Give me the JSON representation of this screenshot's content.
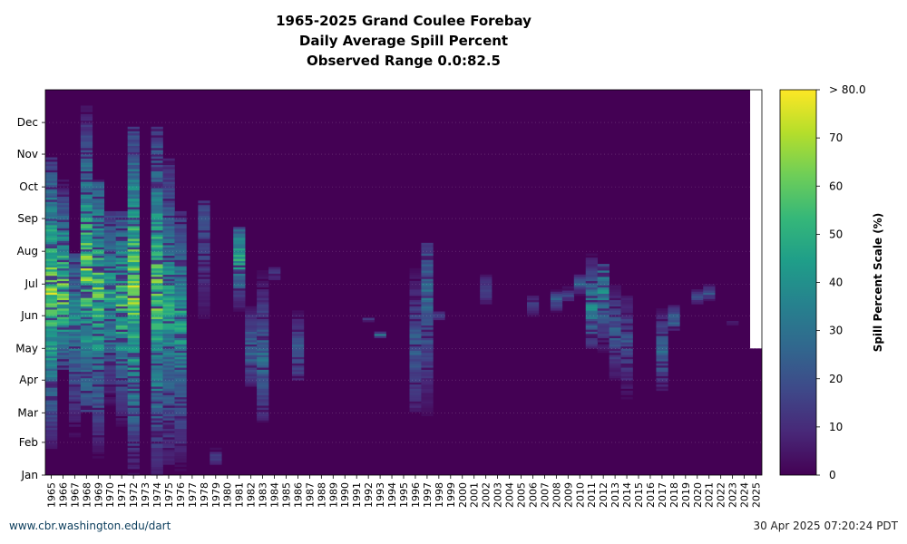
{
  "chart_data": {
    "type": "heatmap",
    "title": "1965-2025 Grand Coulee Forebay",
    "subtitle": "Daily Average Spill Percent",
    "range_note": "Observed Range 0.0:82.5",
    "years": [
      "1965",
      "1966",
      "1967",
      "1968",
      "1969",
      "1970",
      "1971",
      "1972",
      "1973",
      "1974",
      "1975",
      "1976",
      "1977",
      "1978",
      "1979",
      "1980",
      "1981",
      "1982",
      "1983",
      "1984",
      "1985",
      "1986",
      "1987",
      "1988",
      "1989",
      "1990",
      "1991",
      "1992",
      "1993",
      "1994",
      "1995",
      "1996",
      "1997",
      "1998",
      "1999",
      "2000",
      "2001",
      "2002",
      "2003",
      "2004",
      "2005",
      "2006",
      "2007",
      "2008",
      "2009",
      "2010",
      "2011",
      "2012",
      "2013",
      "2014",
      "2015",
      "2016",
      "2017",
      "2018",
      "2019",
      "2020",
      "2021",
      "2022",
      "2023",
      "2024",
      "2025"
    ],
    "months": [
      "Jan",
      "Feb",
      "Mar",
      "Apr",
      "May",
      "Jun",
      "Jul",
      "Aug",
      "Sep",
      "Oct",
      "Nov",
      "Dec"
    ],
    "colorbar": {
      "label": "Spill Percent Scale (%)",
      "ticks": [
        "0",
        "10",
        "20",
        "30",
        "40",
        "50",
        "60",
        "70",
        "> 80.0"
      ],
      "min": 0,
      "max": 80,
      "colormap": [
        "#440154",
        "#482878",
        "#3e4989",
        "#31688e",
        "#26828e",
        "#1f9e89",
        "#35b779",
        "#6ece58",
        "#b5de2b",
        "#fde725"
      ]
    },
    "spill_events": [
      {
        "year": "1965",
        "start": 25,
        "end": 300,
        "peak": 80,
        "center": 175
      },
      {
        "year": "1966",
        "start": 100,
        "end": 280,
        "peak": 80,
        "center": 180
      },
      {
        "year": "1967",
        "start": 0,
        "end": 210,
        "peak": 45,
        "center": 150
      },
      {
        "year": "1968",
        "start": 60,
        "end": 350,
        "peak": 78,
        "center": 190
      },
      {
        "year": "1969",
        "start": 0,
        "end": 280,
        "peak": 70,
        "center": 175
      },
      {
        "year": "1970",
        "start": 60,
        "end": 250,
        "peak": 55,
        "center": 170
      },
      {
        "year": "1971",
        "start": 40,
        "end": 250,
        "peak": 70,
        "center": 165
      },
      {
        "year": "1972",
        "start": 0,
        "end": 330,
        "peak": 80,
        "center": 180
      },
      {
        "year": "1974",
        "start": 0,
        "end": 330,
        "peak": 75,
        "center": 175
      },
      {
        "year": "1975",
        "start": 10,
        "end": 300,
        "peak": 55,
        "center": 160
      },
      {
        "year": "1976",
        "start": 0,
        "end": 250,
        "peak": 55,
        "center": 145
      },
      {
        "year": "1978",
        "start": 100,
        "end": 260,
        "peak": 25,
        "center": 230
      },
      {
        "year": "1979",
        "start": 10,
        "end": 30,
        "peak": 20,
        "center": 15
      },
      {
        "year": "1981",
        "start": 145,
        "end": 235,
        "peak": 60,
        "center": 205
      },
      {
        "year": "1982",
        "start": 80,
        "end": 160,
        "peak": 35,
        "center": 120
      },
      {
        "year": "1983",
        "start": 50,
        "end": 200,
        "peak": 35,
        "center": 110
      },
      {
        "year": "1984",
        "start": 185,
        "end": 200,
        "peak": 20,
        "center": 190
      },
      {
        "year": "1986",
        "start": 90,
        "end": 165,
        "peak": 30,
        "center": 115
      },
      {
        "year": "1992",
        "start": 145,
        "end": 150,
        "peak": 20,
        "center": 147
      },
      {
        "year": "1993",
        "start": 130,
        "end": 135,
        "peak": 60,
        "center": 132
      },
      {
        "year": "1996",
        "start": 60,
        "end": 200,
        "peak": 30,
        "center": 120
      },
      {
        "year": "1997",
        "start": 20,
        "end": 220,
        "peak": 35,
        "center": 165
      },
      {
        "year": "1998",
        "start": 145,
        "end": 155,
        "peak": 20,
        "center": 150
      },
      {
        "year": "2002",
        "start": 160,
        "end": 190,
        "peak": 25,
        "center": 175
      },
      {
        "year": "2006",
        "start": 150,
        "end": 170,
        "peak": 25,
        "center": 160
      },
      {
        "year": "2008",
        "start": 150,
        "end": 175,
        "peak": 30,
        "center": 165
      },
      {
        "year": "2009",
        "start": 165,
        "end": 180,
        "peak": 25,
        "center": 170
      },
      {
        "year": "2010",
        "start": 170,
        "end": 190,
        "peak": 30,
        "center": 180
      },
      {
        "year": "2011",
        "start": 120,
        "end": 210,
        "peak": 45,
        "center": 160
      },
      {
        "year": "2012",
        "start": 90,
        "end": 200,
        "peak": 45,
        "center": 175
      },
      {
        "year": "2013",
        "start": 90,
        "end": 180,
        "peak": 30,
        "center": 135
      },
      {
        "year": "2014",
        "start": 70,
        "end": 170,
        "peak": 25,
        "center": 125
      },
      {
        "year": "2017",
        "start": 80,
        "end": 160,
        "peak": 35,
        "center": 115
      },
      {
        "year": "2018",
        "start": 135,
        "end": 160,
        "peak": 40,
        "center": 148
      },
      {
        "year": "2020",
        "start": 160,
        "end": 175,
        "peak": 25,
        "center": 168
      },
      {
        "year": "2021",
        "start": 165,
        "end": 180,
        "peak": 30,
        "center": 172
      },
      {
        "year": "2023",
        "start": 140,
        "end": 145,
        "peak": 20,
        "center": 142
      }
    ]
  },
  "footer": {
    "left": "www.cbr.washington.edu/dart",
    "right": "30 Apr 2025 07:20:24 PDT"
  }
}
